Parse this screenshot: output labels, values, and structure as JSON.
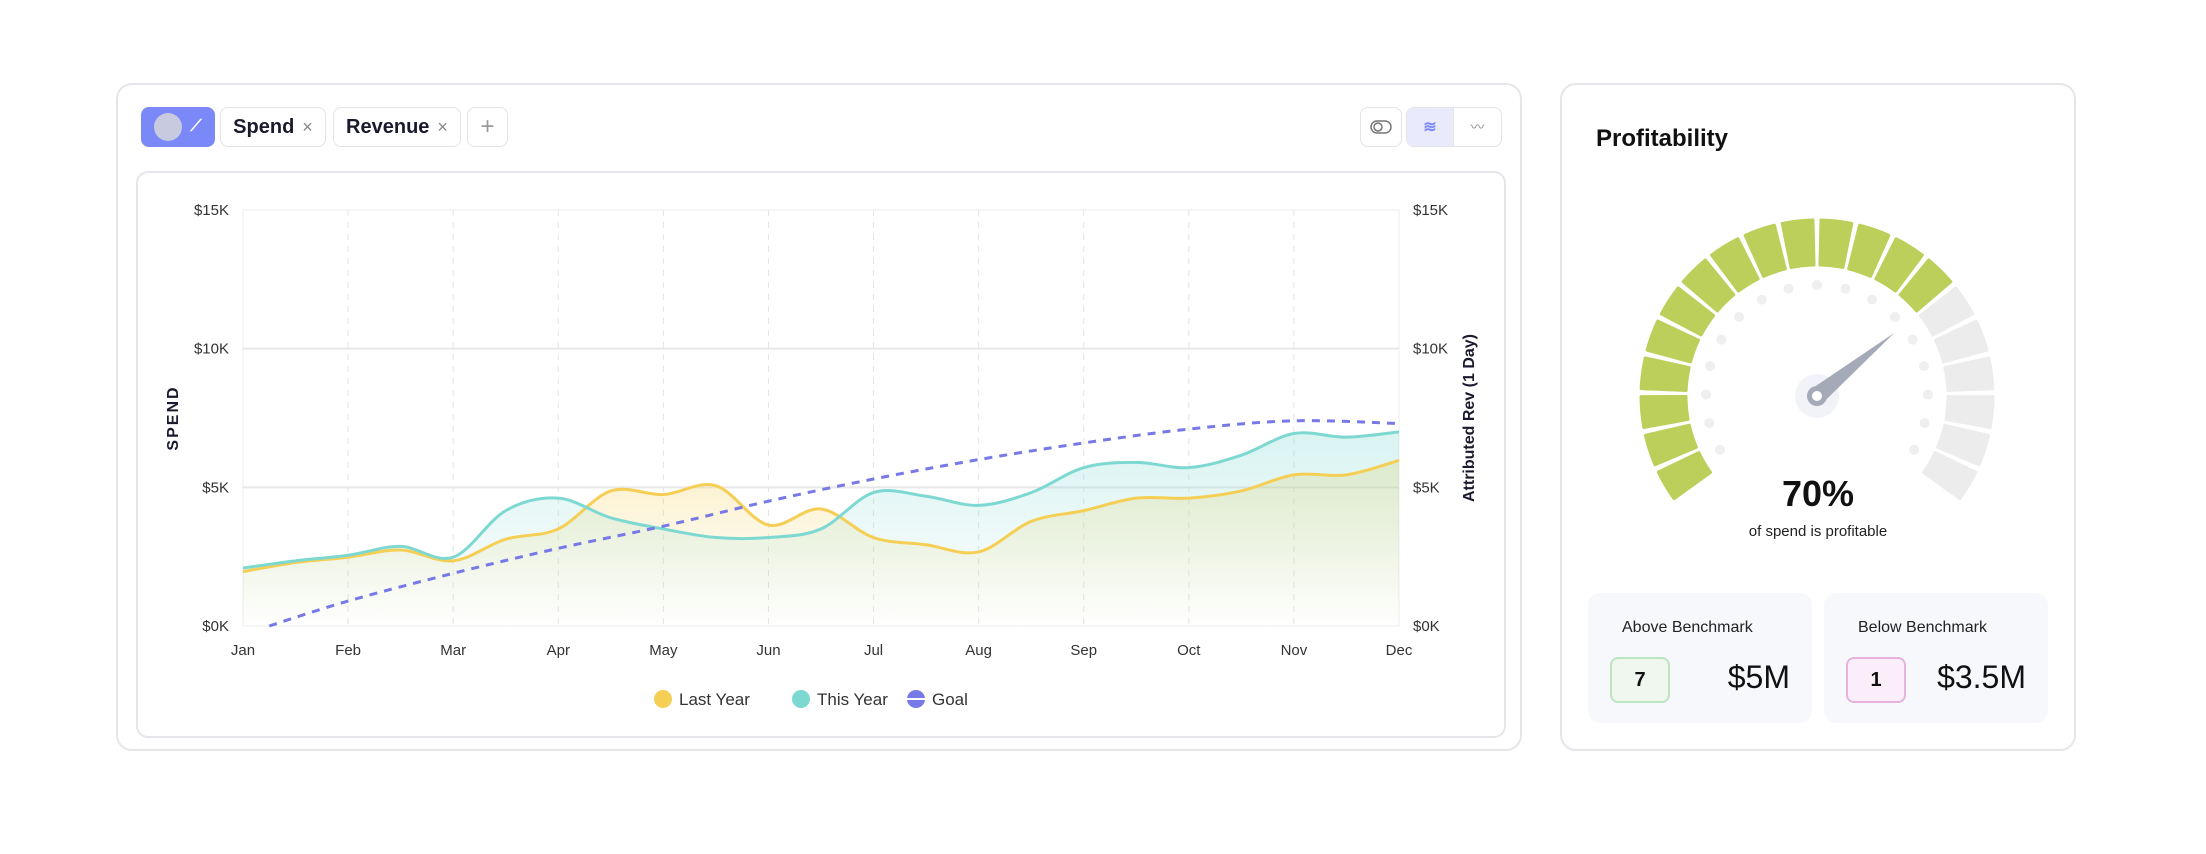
{
  "toolbar": {
    "chips": [
      {
        "label": "Spend",
        "close": "×"
      },
      {
        "label": "Revenue",
        "close": "×"
      }
    ],
    "add": "+"
  },
  "colors": {
    "last_year": "#f5cf55",
    "this_year": "#7ed8d2",
    "goal": "#7779e6",
    "gauge_on": "#bccf5a",
    "gauge_off": "#ececec",
    "accent": "#7b88f7"
  },
  "chart_data": {
    "type": "line",
    "x": [
      "Jan",
      "Jan",
      "Feb",
      "Feb",
      "Mar",
      "Mar",
      "Apr",
      "Apr",
      "May",
      "May",
      "Jun",
      "Jun",
      "Jul",
      "Jul",
      "Aug",
      "Aug",
      "Sep",
      "Sep",
      "Oct",
      "Oct",
      "Nov",
      "Nov",
      "Dec"
    ],
    "x_positions_months": [
      0,
      0.5,
      1,
      1.5,
      2,
      2.5,
      3,
      3.5,
      4,
      4.5,
      5,
      5.5,
      6,
      6.5,
      7,
      7.5,
      8,
      8.5,
      9,
      9.5,
      10,
      10.5,
      11
    ],
    "categories": [
      "Jan",
      "Feb",
      "Mar",
      "Apr",
      "May",
      "Jun",
      "Jul",
      "Aug",
      "Sep",
      "Oct",
      "Nov",
      "Dec"
    ],
    "series": [
      {
        "name": "Last Year",
        "values": [
          1.96,
          2.29,
          2.48,
          2.74,
          2.35,
          3.13,
          3.5,
          4.87,
          4.74,
          5.06,
          3.64,
          4.22,
          3.19,
          2.93,
          2.67,
          3.77,
          4.16,
          4.61,
          4.61,
          4.87,
          5.45,
          5.45,
          5.97
        ]
      },
      {
        "name": "This Year",
        "values": [
          2.09,
          2.35,
          2.55,
          2.87,
          2.48,
          4.16,
          4.61,
          3.9,
          3.5,
          3.19,
          3.19,
          3.5,
          4.81,
          4.68,
          4.35,
          4.81,
          5.71,
          5.9,
          5.71,
          6.16,
          6.94,
          6.81,
          7.0
        ]
      },
      {
        "name": "Goal",
        "monthly_values": [
          0.0,
          0.9,
          1.9,
          2.8,
          3.6,
          4.5,
          5.3,
          6.0,
          6.6,
          7.1,
          7.4,
          7.3
        ]
      }
    ],
    "units": "$K",
    "ylabel": "SPEND",
    "ylabel_right": "Attributed Rev (1 Day)",
    "yticks": [
      "$0K",
      "$5K",
      "$10K",
      "$15K"
    ],
    "ylim": [
      0,
      15
    ],
    "legend": [
      "Last Year",
      "This Year",
      "Goal"
    ],
    "legend_position": "bottom"
  },
  "profitability": {
    "title": "Profitability",
    "percent": 70,
    "percent_label": "70%",
    "subtitle": "of spend is profitable",
    "segments": 20,
    "active_segments": 14,
    "above": {
      "label": "Above Benchmark",
      "count": "7",
      "value": "$5M"
    },
    "below": {
      "label": "Below Benchmark",
      "count": "1",
      "value": "$3.5M"
    }
  }
}
